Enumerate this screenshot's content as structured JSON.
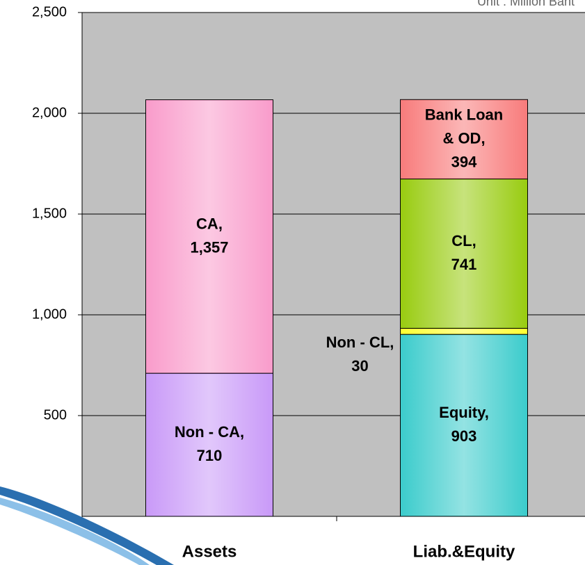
{
  "chart_data": {
    "type": "stacked_bar",
    "subtitle": "Unit : Million Baht",
    "categories": [
      "Assets",
      "Liab.&Equity"
    ],
    "series": [
      {
        "name": "Non - CA,",
        "color": "#c99af8",
        "values": [
          710,
          null
        ],
        "value_labels": [
          "710",
          null
        ]
      },
      {
        "name": "CA,",
        "color": "#f99ccb",
        "values": [
          1357,
          null
        ],
        "value_labels": [
          "1,357",
          null
        ]
      },
      {
        "name": "Equity,",
        "color": "#3ccccc",
        "values": [
          null,
          903
        ],
        "value_labels": [
          null,
          "903"
        ]
      },
      {
        "name": "Non - CL,",
        "color": "#ffff33",
        "values": [
          null,
          30
        ],
        "value_labels": [
          null,
          "30"
        ]
      },
      {
        "name": "CL,",
        "color": "#99cc11",
        "values": [
          null,
          741
        ],
        "value_labels": [
          null,
          "741"
        ]
      },
      {
        "name": "Bank Loan\n& OD,",
        "color": "#f87c7c",
        "values": [
          null,
          394
        ],
        "value_labels": [
          null,
          "394"
        ]
      }
    ],
    "ylim": [
      0,
      2500
    ],
    "yticks": [
      {
        "value": 500,
        "label": "500"
      },
      {
        "value": 1000,
        "label": "1,000"
      },
      {
        "value": 1500,
        "label": "1,500"
      },
      {
        "value": 2000,
        "label": "2,000"
      },
      {
        "value": 2500,
        "label": "2,500"
      }
    ],
    "grid": true
  }
}
